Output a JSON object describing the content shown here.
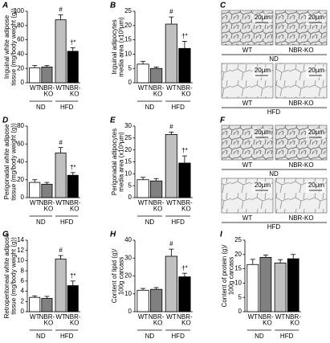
{
  "chart_data": [
    {
      "panel": "A",
      "type": "bar",
      "ylabel": [
        "Inguinal white adipose",
        "tissue (mg/body weight (g))"
      ],
      "categories": [
        [
          "WT"
        ],
        [
          "NBR-",
          "KO"
        ],
        [
          "WT"
        ],
        [
          "NBR-",
          "KO"
        ]
      ],
      "groups": [
        "ND",
        "HFD"
      ],
      "values": [
        21,
        22,
        88,
        44
      ],
      "errors": [
        3,
        2,
        7,
        5
      ],
      "annotations": [
        null,
        null,
        "#",
        "†*"
      ],
      "colors": [
        "#ffffff",
        "#808080",
        "#c0c0c0",
        "#000000"
      ],
      "ylim": [
        0,
        100
      ],
      "yticks": [
        0,
        20,
        40,
        60,
        80,
        100
      ]
    },
    {
      "panel": "B",
      "type": "bar",
      "ylabel": [
        "Inguinal adipocytes",
        "media area (x10³µm)"
      ],
      "categories": [
        [
          "WT"
        ],
        [
          "NBR-",
          "KO"
        ],
        [
          "WT"
        ],
        [
          "NBR-",
          "KO"
        ]
      ],
      "groups": [
        "ND",
        "HFD"
      ],
      "values": [
        6.5,
        5,
        20.5,
        12
      ],
      "errors": [
        1,
        0.5,
        2.5,
        2.5
      ],
      "annotations": [
        null,
        null,
        "#",
        "†*"
      ],
      "colors": [
        "#ffffff",
        "#808080",
        "#c0c0c0",
        "#000000"
      ],
      "ylim": [
        0,
        25
      ],
      "yticks": [
        0,
        5,
        10,
        15,
        20,
        25
      ]
    },
    {
      "panel": "D",
      "type": "bar",
      "ylabel": [
        "Perigonadal white adipose",
        "tissue (mg/body weight (g))"
      ],
      "categories": [
        [
          "WT"
        ],
        [
          "NBR-",
          "KO"
        ],
        [
          "WT"
        ],
        [
          "NBR-",
          "KO"
        ]
      ],
      "groups": [
        "ND",
        "HFD"
      ],
      "values": [
        17,
        15,
        50,
        25
      ],
      "errors": [
        3,
        2,
        6,
        3
      ],
      "annotations": [
        null,
        null,
        "#",
        "†*"
      ],
      "colors": [
        "#ffffff",
        "#808080",
        "#c0c0c0",
        "#000000"
      ],
      "ylim": [
        0,
        80
      ],
      "yticks": [
        0,
        20,
        40,
        60,
        80
      ]
    },
    {
      "panel": "E",
      "type": "bar",
      "ylabel": [
        "Perigonadal adipocytes",
        "media area (x10³µm)"
      ],
      "categories": [
        [
          "WT"
        ],
        [
          "NBR-",
          "KO"
        ],
        [
          "WT"
        ],
        [
          "NBR-",
          "KO"
        ]
      ],
      "groups": [
        "ND",
        "HFD"
      ],
      "values": [
        7.5,
        7,
        26.5,
        14.5
      ],
      "errors": [
        1,
        1,
        1,
        3
      ],
      "annotations": [
        null,
        null,
        "#",
        "†*"
      ],
      "colors": [
        "#ffffff",
        "#808080",
        "#c0c0c0",
        "#000000"
      ],
      "ylim": [
        0,
        30
      ],
      "yticks": [
        0,
        5,
        10,
        15,
        20,
        25,
        30
      ]
    },
    {
      "panel": "G",
      "type": "bar",
      "ylabel": [
        "Retroperitoneal white adipose",
        "tissue (mg/body weight (g))"
      ],
      "categories": [
        [
          "WT"
        ],
        [
          "NBR-",
          "KO"
        ],
        [
          "WT"
        ],
        [
          "NBR-",
          "KO"
        ]
      ],
      "groups": [
        "ND",
        "HFD"
      ],
      "values": [
        2.8,
        2.6,
        10.3,
        5.1
      ],
      "errors": [
        0.3,
        0.4,
        0.7,
        0.9
      ],
      "annotations": [
        null,
        null,
        "#",
        "†*"
      ],
      "colors": [
        "#ffffff",
        "#808080",
        "#c0c0c0",
        "#000000"
      ],
      "ylim": [
        0,
        14
      ],
      "yticks": [
        0,
        2,
        4,
        6,
        8,
        10,
        12,
        14
      ]
    },
    {
      "panel": "H",
      "type": "bar",
      "ylabel": [
        "Content of lipid (g)/",
        "100g carcass"
      ],
      "categories": [
        [
          "WT"
        ],
        [
          "NBR-",
          "KO"
        ],
        [
          "WT"
        ],
        [
          "NBR-",
          "KO"
        ]
      ],
      "groups": [
        "ND",
        "HFD"
      ],
      "values": [
        12,
        12.5,
        31,
        19.5
      ],
      "errors": [
        1,
        1,
        4,
        2
      ],
      "annotations": [
        null,
        null,
        "#",
        "†*"
      ],
      "colors": [
        "#ffffff",
        "#808080",
        "#c0c0c0",
        "#000000"
      ],
      "ylim": [
        0,
        40
      ],
      "yticks": [
        0,
        10,
        20,
        30,
        40
      ]
    },
    {
      "panel": "I",
      "type": "bar",
      "ylabel": [
        "Content of protein (g)/",
        "100g carcass"
      ],
      "categories": [
        [
          "WT"
        ],
        [
          "NBR-",
          "KO"
        ],
        [
          "WT"
        ],
        [
          "NBR-",
          "KO"
        ]
      ],
      "groups": [
        "ND",
        "HFD"
      ],
      "values": [
        16.5,
        19,
        17,
        18.5
      ],
      "errors": [
        1.8,
        0.8,
        1.2,
        1.5
      ],
      "annotations": [
        null,
        null,
        null,
        null
      ],
      "colors": [
        "#ffffff",
        "#808080",
        "#c0c0c0",
        "#000000"
      ],
      "ylim": [
        0,
        25
      ],
      "yticks": [
        0,
        5,
        10,
        15,
        20,
        25
      ]
    }
  ],
  "micrographs": [
    {
      "panel": "C",
      "scale": "20µm",
      "rows": [
        {
          "labels": [
            "WT",
            "NBR-KO"
          ],
          "group": "ND"
        },
        {
          "labels": [
            "WT",
            "NBR-KO"
          ],
          "group": "HFD"
        }
      ]
    },
    {
      "panel": "F",
      "scale": "20µm",
      "rows": [
        {
          "labels": [
            "WT",
            "NBR-KO"
          ],
          "group": "ND"
        },
        {
          "labels": [
            "WT",
            "NBR-KO"
          ],
          "group": "HFD"
        }
      ]
    }
  ]
}
